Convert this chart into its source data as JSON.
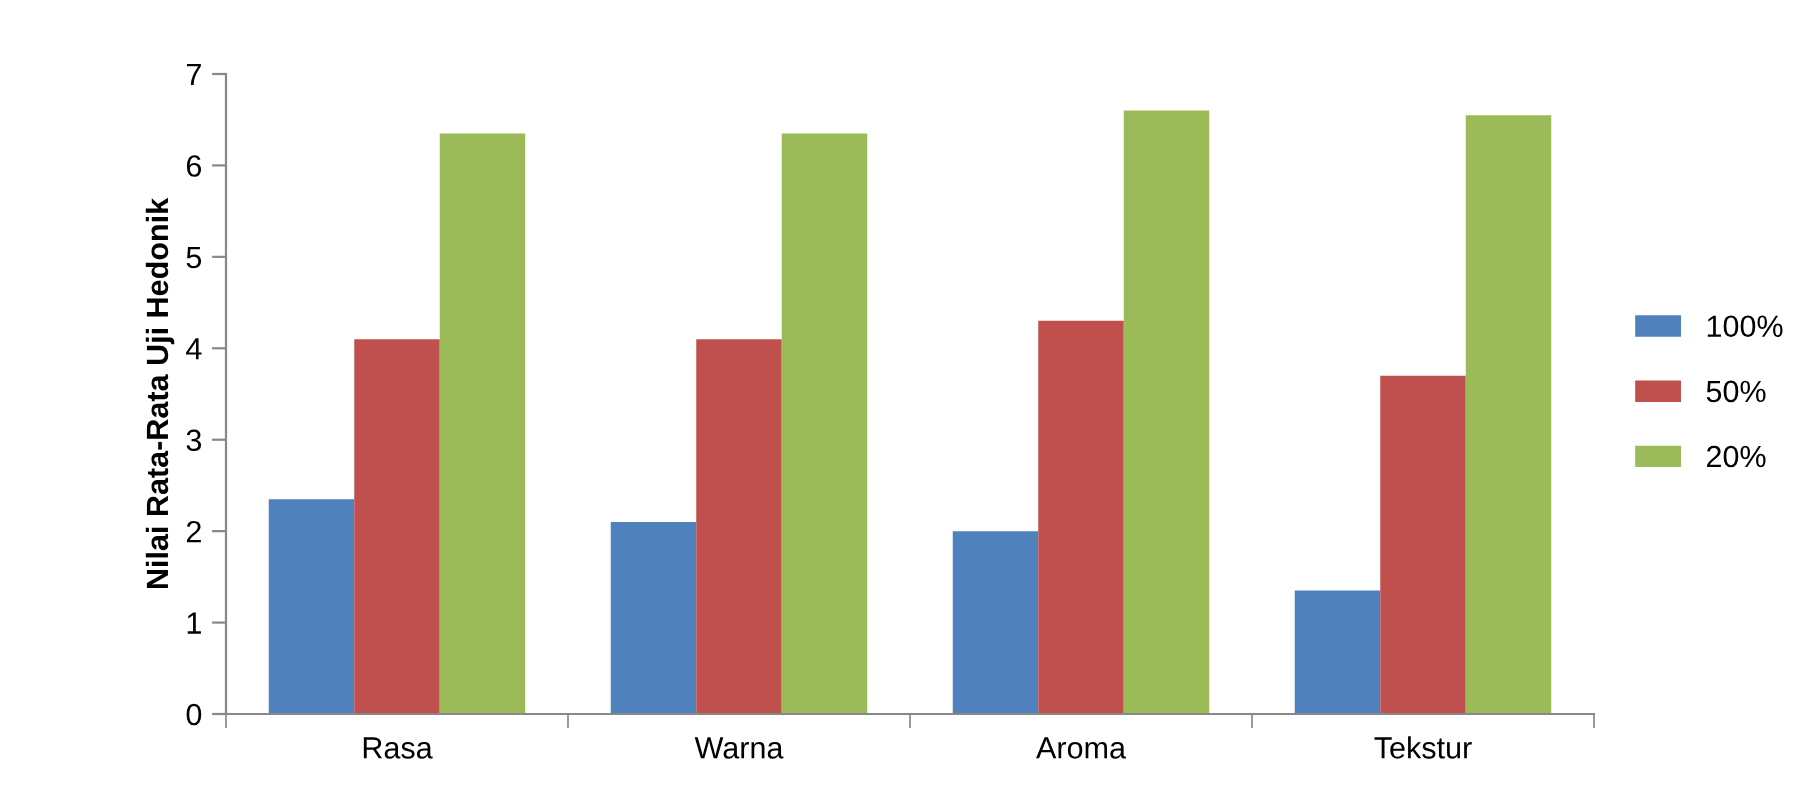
{
  "chart_data": {
    "type": "bar",
    "ylabel": "Nilai Rata-Rata Uji Hedonik",
    "categories": [
      "Rasa",
      "Warna",
      "Aroma",
      "Tekstur"
    ],
    "series": [
      {
        "name": "100%",
        "color": "#4f81bd",
        "values": [
          2.35,
          2.1,
          2.0,
          1.35
        ]
      },
      {
        "name": "50%",
        "color": "#c0504d",
        "values": [
          4.1,
          4.1,
          4.3,
          3.7
        ]
      },
      {
        "name": "20%",
        "color": "#9bbb59",
        "values": [
          6.35,
          6.35,
          6.6,
          6.55
        ]
      }
    ],
    "ylim": [
      0,
      7
    ],
    "yticks": [
      0,
      1,
      2,
      3,
      4,
      5,
      6,
      7
    ],
    "grid": false,
    "legend": "right"
  }
}
